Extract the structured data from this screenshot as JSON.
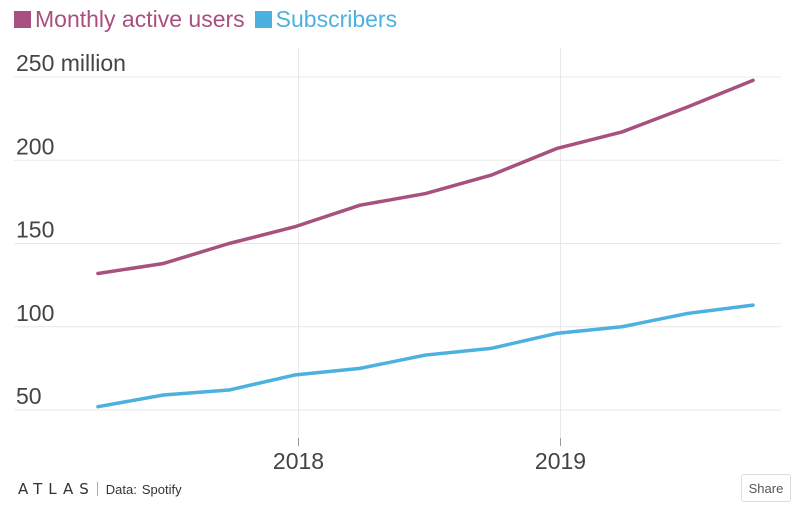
{
  "chart_data": {
    "type": "line",
    "title": "",
    "xlabel": "",
    "ylabel": "",
    "x": [
      "2017Q1",
      "2017Q2",
      "2017Q3",
      "2017Q4",
      "2018Q1",
      "2018Q2",
      "2018Q3",
      "2018Q4",
      "2019Q1",
      "2019Q2",
      "2019Q3"
    ],
    "x_ticks": [
      {
        "label": "2018",
        "index": 3
      },
      {
        "label": "2019",
        "index": 7
      }
    ],
    "y_ticks": [
      {
        "value": 250,
        "label": "250 million"
      },
      {
        "value": 200,
        "label": "200"
      },
      {
        "value": 150,
        "label": "150"
      },
      {
        "value": 100,
        "label": "100"
      },
      {
        "value": 50,
        "label": "50"
      }
    ],
    "ylim": [
      40,
      262
    ],
    "series": [
      {
        "name": "Monthly active users",
        "color": "#a8507f",
        "values": [
          132,
          138,
          150,
          160,
          173,
          180,
          191,
          207,
          217,
          232,
          248
        ]
      },
      {
        "name": "Subscribers",
        "color": "#4db1df",
        "values": [
          52,
          59,
          62,
          71,
          75,
          83,
          87,
          96,
          100,
          108,
          113
        ]
      }
    ]
  },
  "footer": {
    "logo": "ATLAS",
    "data_label": "Data:",
    "source": "Spotify",
    "share_label": "Share"
  }
}
